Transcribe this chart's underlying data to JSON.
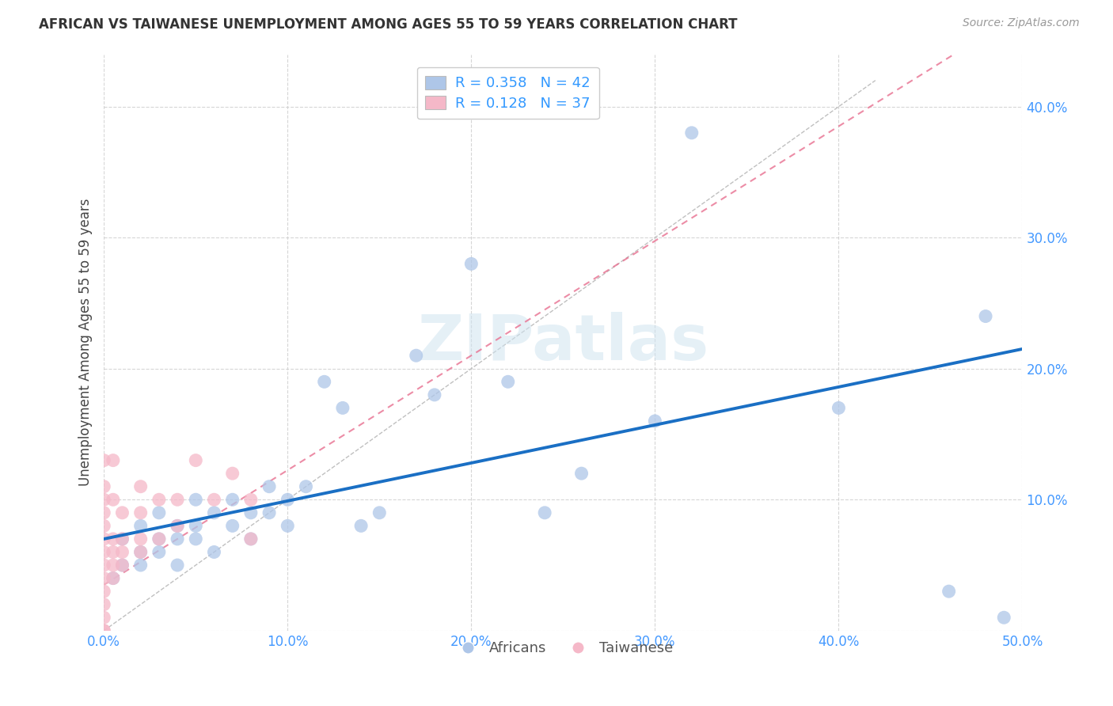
{
  "title": "AFRICAN VS TAIWANESE UNEMPLOYMENT AMONG AGES 55 TO 59 YEARS CORRELATION CHART",
  "source": "Source: ZipAtlas.com",
  "ylabel": "Unemployment Among Ages 55 to 59 years",
  "xlim": [
    0.0,
    0.5
  ],
  "ylim": [
    0.0,
    0.44
  ],
  "xticks": [
    0.0,
    0.1,
    0.2,
    0.3,
    0.4,
    0.5
  ],
  "yticks": [
    0.0,
    0.1,
    0.2,
    0.3,
    0.4
  ],
  "xticklabels": [
    "0.0%",
    "10.0%",
    "20.0%",
    "30.0%",
    "40.0%",
    "50.0%"
  ],
  "yticklabels": [
    "",
    "10.0%",
    "20.0%",
    "30.0%",
    "40.0%"
  ],
  "african_color": "#aec6e8",
  "taiwanese_color": "#f5b8c8",
  "african_line_color": "#1a6fc4",
  "taiwanese_line_color": "#e87090",
  "legend_R_african": "0.358",
  "legend_N_african": "42",
  "legend_R_taiwanese": "0.128",
  "legend_N_taiwanese": "37",
  "african_line_x0": 0.0,
  "african_line_y0": 0.07,
  "african_line_x1": 0.5,
  "african_line_y1": 0.215,
  "taiwanese_line_x0": 0.0,
  "taiwanese_line_y0": 0.035,
  "taiwanese_line_x1": 0.08,
  "taiwanese_line_y1": 0.105,
  "africans_x": [
    0.005,
    0.01,
    0.01,
    0.02,
    0.02,
    0.02,
    0.03,
    0.03,
    0.03,
    0.04,
    0.04,
    0.04,
    0.05,
    0.05,
    0.05,
    0.06,
    0.06,
    0.07,
    0.07,
    0.08,
    0.08,
    0.09,
    0.09,
    0.1,
    0.1,
    0.11,
    0.12,
    0.13,
    0.14,
    0.15,
    0.17,
    0.18,
    0.2,
    0.22,
    0.24,
    0.26,
    0.3,
    0.32,
    0.4,
    0.46,
    0.48,
    0.49
  ],
  "africans_y": [
    0.04,
    0.05,
    0.07,
    0.06,
    0.08,
    0.05,
    0.07,
    0.09,
    0.06,
    0.07,
    0.05,
    0.08,
    0.07,
    0.1,
    0.08,
    0.09,
    0.06,
    0.08,
    0.1,
    0.09,
    0.07,
    0.11,
    0.09,
    0.1,
    0.08,
    0.11,
    0.19,
    0.17,
    0.08,
    0.09,
    0.21,
    0.18,
    0.28,
    0.19,
    0.09,
    0.12,
    0.16,
    0.38,
    0.17,
    0.03,
    0.24,
    0.01
  ],
  "taiwanese_x": [
    0.0,
    0.0,
    0.0,
    0.0,
    0.0,
    0.0,
    0.0,
    0.0,
    0.0,
    0.0,
    0.0,
    0.0,
    0.0,
    0.0,
    0.005,
    0.005,
    0.005,
    0.005,
    0.005,
    0.005,
    0.01,
    0.01,
    0.01,
    0.01,
    0.02,
    0.02,
    0.02,
    0.02,
    0.03,
    0.03,
    0.04,
    0.04,
    0.05,
    0.06,
    0.07,
    0.08,
    0.08
  ],
  "taiwanese_y": [
    0.0,
    0.0,
    0.01,
    0.02,
    0.03,
    0.04,
    0.05,
    0.06,
    0.07,
    0.08,
    0.09,
    0.1,
    0.11,
    0.13,
    0.04,
    0.05,
    0.06,
    0.07,
    0.1,
    0.13,
    0.05,
    0.06,
    0.07,
    0.09,
    0.06,
    0.07,
    0.09,
    0.11,
    0.07,
    0.1,
    0.08,
    0.1,
    0.13,
    0.1,
    0.12,
    0.07,
    0.1
  ],
  "background_color": "#ffffff",
  "watermark_text": "ZIPatlas",
  "grid_color": "#cccccc"
}
